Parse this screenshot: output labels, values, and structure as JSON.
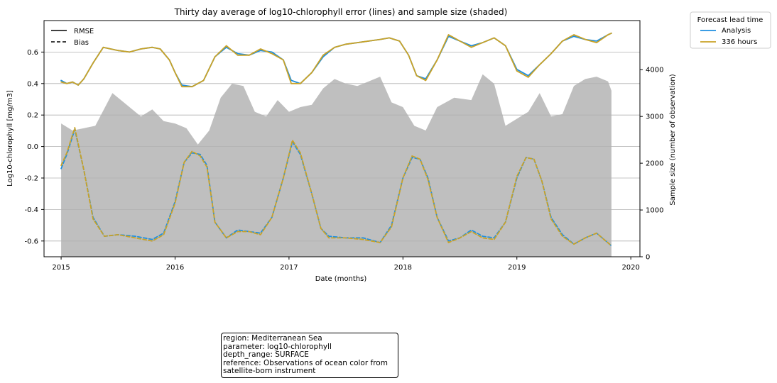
{
  "chart_data": {
    "type": "line",
    "title": "Thirty day average of log10-chlorophyll error (lines) and sample size (shaded)",
    "xlabel": "Date (months)",
    "ylabel": "Log10-chlorophyll [mg/m3]",
    "y2label": "Sample size (number of observation)",
    "xlim": [
      2014.85,
      2020.08
    ],
    "ylim": [
      -0.7,
      0.8
    ],
    "y2lim": [
      0,
      5050
    ],
    "x_ticks": [
      "2015",
      "2016",
      "2017",
      "2018",
      "2019",
      "2020"
    ],
    "y_ticks": [
      "-0.6",
      "-0.4",
      "-0.2",
      "0.0",
      "0.2",
      "0.4",
      "0.6"
    ],
    "y2_ticks": [
      "0",
      "1000",
      "2000",
      "3000",
      "4000"
    ],
    "grid": "horizontal",
    "style_legend": {
      "placement": "top-left",
      "entries": [
        {
          "label": "RMSE",
          "dash": "solid"
        },
        {
          "label": "Bias",
          "dash": "dashed"
        }
      ]
    },
    "lead_legend": {
      "title": "Forecast lead time",
      "placement": "outside-right",
      "entries": [
        {
          "label": "Analysis",
          "color": "#1f8fe0"
        },
        {
          "label": "336 hours",
          "color": "#c9a227"
        }
      ]
    },
    "sample_color": "#bfbfbf",
    "sample_size": {
      "x": [
        2015.0,
        2015.1,
        2015.2,
        2015.3,
        2015.45,
        2015.55,
        2015.7,
        2015.8,
        2015.9,
        2016.0,
        2016.1,
        2016.2,
        2016.3,
        2016.4,
        2016.5,
        2016.6,
        2016.7,
        2016.8,
        2016.9,
        2017.0,
        2017.1,
        2017.2,
        2017.3,
        2017.4,
        2017.5,
        2017.6,
        2017.7,
        2017.8,
        2017.9,
        2018.0,
        2018.1,
        2018.2,
        2018.3,
        2018.45,
        2018.6,
        2018.7,
        2018.8,
        2018.9,
        2019.0,
        2019.1,
        2019.2,
        2019.3,
        2019.4,
        2019.5,
        2019.6,
        2019.7,
        2019.8,
        2019.83
      ],
      "values": [
        2850,
        2700,
        2750,
        2800,
        3500,
        3300,
        3000,
        3150,
        2900,
        2850,
        2750,
        2400,
        2700,
        3400,
        3700,
        3650,
        3100,
        3000,
        3350,
        3100,
        3200,
        3250,
        3600,
        3800,
        3700,
        3650,
        3750,
        3850,
        3300,
        3200,
        2800,
        2700,
        3200,
        3400,
        3350,
        3900,
        3700,
        2800,
        2950,
        3100,
        3500,
        3000,
        3050,
        3650,
        3800,
        3850,
        3750,
        3550
      ]
    },
    "series": [
      {
        "name": "Analysis",
        "metric": "RMSE",
        "color": "#1f8fe0",
        "x": [
          2015.0,
          2015.05,
          2015.1,
          2015.15,
          2015.2,
          2015.28,
          2015.37,
          2015.5,
          2015.6,
          2015.7,
          2015.8,
          2015.87,
          2015.95,
          2016.0,
          2016.06,
          2016.15,
          2016.25,
          2016.35,
          2016.45,
          2016.55,
          2016.65,
          2016.75,
          2016.85,
          2016.95,
          2017.02,
          2017.1,
          2017.2,
          2017.3,
          2017.4,
          2017.5,
          2017.6,
          2017.7,
          2017.8,
          2017.88,
          2017.97,
          2018.05,
          2018.12,
          2018.2,
          2018.3,
          2018.4,
          2018.5,
          2018.6,
          2018.7,
          2018.8,
          2018.9,
          2019.0,
          2019.1,
          2019.2,
          2019.3,
          2019.4,
          2019.5,
          2019.6,
          2019.7,
          2019.8,
          2019.83
        ],
        "values": [
          0.42,
          0.4,
          0.41,
          0.39,
          0.43,
          0.53,
          0.63,
          0.61,
          0.6,
          0.62,
          0.63,
          0.62,
          0.55,
          0.47,
          0.39,
          0.38,
          0.42,
          0.57,
          0.63,
          0.59,
          0.58,
          0.61,
          0.6,
          0.55,
          0.42,
          0.4,
          0.47,
          0.57,
          0.63,
          0.65,
          0.66,
          0.67,
          0.68,
          0.69,
          0.67,
          0.58,
          0.45,
          0.43,
          0.55,
          0.7,
          0.67,
          0.64,
          0.66,
          0.69,
          0.64,
          0.49,
          0.45,
          0.52,
          0.59,
          0.67,
          0.7,
          0.68,
          0.67,
          0.71,
          0.72
        ]
      },
      {
        "name": "336 hours",
        "metric": "RMSE",
        "color": "#c9a227",
        "x": [
          2015.0,
          2015.05,
          2015.1,
          2015.15,
          2015.2,
          2015.28,
          2015.37,
          2015.5,
          2015.6,
          2015.7,
          2015.8,
          2015.87,
          2015.95,
          2016.0,
          2016.06,
          2016.15,
          2016.25,
          2016.35,
          2016.45,
          2016.55,
          2016.65,
          2016.75,
          2016.85,
          2016.95,
          2017.02,
          2017.1,
          2017.2,
          2017.3,
          2017.4,
          2017.5,
          2017.6,
          2017.7,
          2017.8,
          2017.88,
          2017.97,
          2018.05,
          2018.12,
          2018.2,
          2018.3,
          2018.4,
          2018.5,
          2018.6,
          2018.7,
          2018.8,
          2018.9,
          2019.0,
          2019.1,
          2019.2,
          2019.3,
          2019.4,
          2019.5,
          2019.6,
          2019.7,
          2019.8,
          2019.83
        ],
        "values": [
          0.41,
          0.4,
          0.41,
          0.39,
          0.43,
          0.53,
          0.63,
          0.61,
          0.6,
          0.62,
          0.63,
          0.62,
          0.55,
          0.47,
          0.38,
          0.38,
          0.42,
          0.57,
          0.64,
          0.58,
          0.58,
          0.62,
          0.59,
          0.55,
          0.4,
          0.4,
          0.47,
          0.58,
          0.63,
          0.65,
          0.66,
          0.67,
          0.68,
          0.69,
          0.67,
          0.58,
          0.45,
          0.42,
          0.55,
          0.71,
          0.67,
          0.63,
          0.66,
          0.69,
          0.64,
          0.48,
          0.44,
          0.52,
          0.59,
          0.67,
          0.71,
          0.68,
          0.66,
          0.71,
          0.72
        ]
      },
      {
        "name": "Analysis",
        "metric": "Bias",
        "color": "#1f8fe0",
        "x": [
          2015.0,
          2015.05,
          2015.12,
          2015.2,
          2015.28,
          2015.38,
          2015.5,
          2015.65,
          2015.8,
          2015.9,
          2016.0,
          2016.08,
          2016.15,
          2016.22,
          2016.28,
          2016.35,
          2016.45,
          2016.55,
          2016.65,
          2016.75,
          2016.85,
          2016.95,
          2017.03,
          2017.1,
          2017.2,
          2017.28,
          2017.35,
          2017.5,
          2017.65,
          2017.8,
          2017.9,
          2018.0,
          2018.08,
          2018.15,
          2018.22,
          2018.3,
          2018.4,
          2018.5,
          2018.6,
          2018.7,
          2018.8,
          2018.9,
          2019.0,
          2019.08,
          2019.15,
          2019.22,
          2019.3,
          2019.4,
          2019.5,
          2019.6,
          2019.7,
          2019.83
        ],
        "values": [
          -0.14,
          -0.05,
          0.11,
          -0.15,
          -0.45,
          -0.57,
          -0.56,
          -0.57,
          -0.59,
          -0.55,
          -0.35,
          -0.1,
          -0.04,
          -0.05,
          -0.12,
          -0.48,
          -0.58,
          -0.53,
          -0.54,
          -0.55,
          -0.45,
          -0.2,
          0.03,
          -0.05,
          -0.3,
          -0.52,
          -0.57,
          -0.58,
          -0.58,
          -0.61,
          -0.5,
          -0.2,
          -0.07,
          -0.08,
          -0.2,
          -0.45,
          -0.6,
          -0.58,
          -0.53,
          -0.57,
          -0.58,
          -0.48,
          -0.2,
          -0.07,
          -0.08,
          -0.22,
          -0.45,
          -0.56,
          -0.62,
          -0.58,
          -0.55,
          -0.63
        ]
      },
      {
        "name": "336 hours",
        "metric": "Bias",
        "color": "#c9a227",
        "x": [
          2015.0,
          2015.05,
          2015.12,
          2015.2,
          2015.28,
          2015.38,
          2015.5,
          2015.65,
          2015.8,
          2015.9,
          2016.0,
          2016.08,
          2016.15,
          2016.22,
          2016.28,
          2016.35,
          2016.45,
          2016.55,
          2016.65,
          2016.75,
          2016.85,
          2016.95,
          2017.03,
          2017.1,
          2017.2,
          2017.28,
          2017.35,
          2017.5,
          2017.65,
          2017.8,
          2017.9,
          2018.0,
          2018.08,
          2018.15,
          2018.22,
          2018.3,
          2018.4,
          2018.5,
          2018.6,
          2018.7,
          2018.8,
          2018.9,
          2019.0,
          2019.08,
          2019.15,
          2019.22,
          2019.3,
          2019.4,
          2019.5,
          2019.6,
          2019.7,
          2019.83
        ],
        "values": [
          -0.12,
          -0.04,
          0.12,
          -0.15,
          -0.46,
          -0.57,
          -0.56,
          -0.58,
          -0.6,
          -0.56,
          -0.36,
          -0.1,
          -0.03,
          -0.06,
          -0.13,
          -0.48,
          -0.58,
          -0.54,
          -0.54,
          -0.56,
          -0.45,
          -0.2,
          0.04,
          -0.04,
          -0.3,
          -0.52,
          -0.58,
          -0.58,
          -0.59,
          -0.61,
          -0.51,
          -0.2,
          -0.06,
          -0.08,
          -0.21,
          -0.45,
          -0.61,
          -0.58,
          -0.54,
          -0.58,
          -0.59,
          -0.48,
          -0.19,
          -0.07,
          -0.08,
          -0.22,
          -0.46,
          -0.57,
          -0.62,
          -0.58,
          -0.55,
          -0.63
        ]
      }
    ]
  },
  "info_box": {
    "lines": [
      "region: Mediterranean Sea",
      "parameter: log10-chlorophyll",
      "depth_range: SURFACE",
      "reference: Observations of ocean color from satellite-born instrument"
    ]
  }
}
